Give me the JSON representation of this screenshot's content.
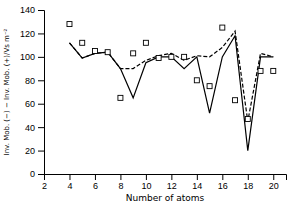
{
  "chart_data": {
    "type": "line",
    "xlabel": "Number of atoms",
    "ylabel": "Inv. Mob. (−) − Inv. Mob. (+)/Vs m⁻²",
    "xlim": [
      2,
      21
    ],
    "ylim": [
      0,
      140
    ],
    "xticks": [
      2,
      4,
      6,
      8,
      10,
      12,
      14,
      16,
      18,
      20
    ],
    "yticks": [
      0,
      20,
      40,
      60,
      80,
      100,
      120,
      140
    ],
    "series": [
      {
        "type": "scatter",
        "marker": "square",
        "color": "#000000",
        "x": [
          4,
          5,
          6,
          7,
          8,
          9,
          10,
          11,
          12,
          13,
          14,
          15,
          16,
          17,
          18,
          19,
          20
        ],
        "values": [
          128,
          112,
          105,
          104,
          65,
          103,
          112,
          99,
          100,
          100,
          80,
          75,
          125,
          63,
          47,
          88,
          88
        ]
      },
      {
        "type": "line",
        "line_style": "solid",
        "color": "#000000",
        "x": [
          4,
          5,
          6,
          7,
          8,
          9,
          10,
          11,
          12,
          13,
          14,
          15,
          16,
          17,
          18,
          19,
          20
        ],
        "values": [
          112,
          99,
          103,
          104,
          90,
          65,
          95,
          100,
          100,
          90,
          100,
          52,
          100,
          118,
          20,
          100,
          100
        ]
      },
      {
        "type": "line",
        "line_style": "dashed",
        "color": "#000000",
        "x": [
          4,
          5,
          6,
          7,
          8,
          9,
          10,
          11,
          12,
          13,
          14,
          15,
          16,
          17,
          18,
          19,
          20
        ],
        "values": [
          112,
          99,
          103,
          104,
          90,
          90,
          97,
          101,
          103,
          97,
          101,
          100,
          108,
          122,
          45,
          103,
          100
        ]
      }
    ]
  }
}
